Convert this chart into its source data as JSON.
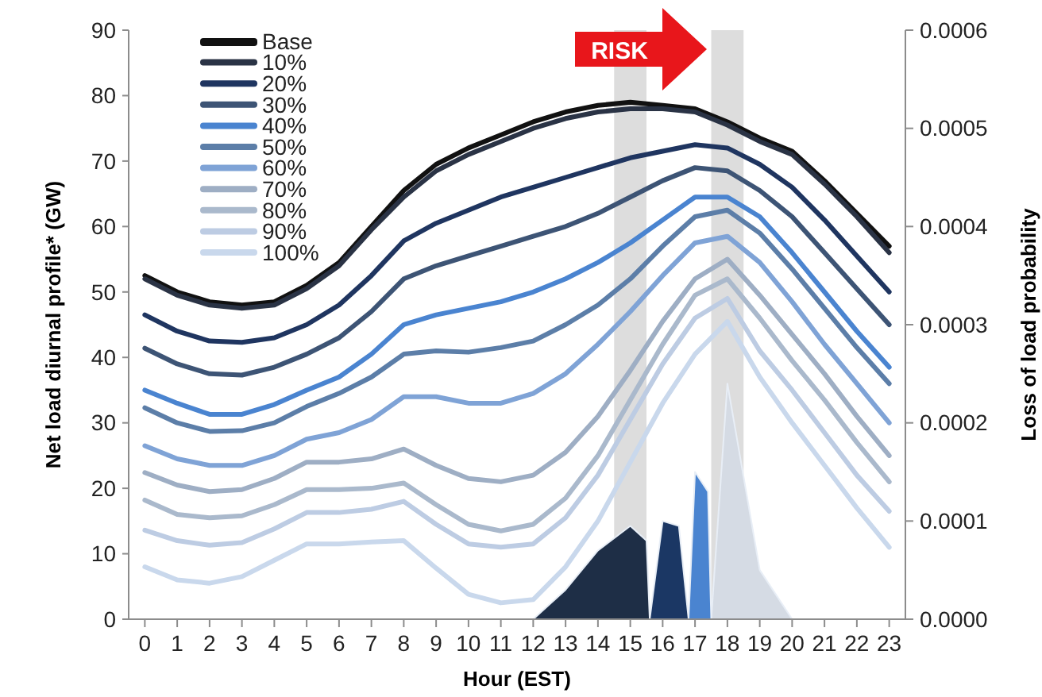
{
  "chart_data": {
    "type": "line",
    "xlabel": "Hour (EST)",
    "ylabel": "Net load diurnal profile* (GW)",
    "y2label": "Loss of load probability",
    "x": [
      0,
      1,
      2,
      3,
      4,
      5,
      6,
      7,
      8,
      9,
      10,
      11,
      12,
      13,
      14,
      15,
      16,
      17,
      18,
      19,
      20,
      21,
      22,
      23
    ],
    "xlim": [
      -0.5,
      23.5
    ],
    "xticks": [
      0,
      1,
      2,
      3,
      4,
      5,
      6,
      7,
      8,
      9,
      10,
      11,
      12,
      13,
      14,
      15,
      16,
      17,
      18,
      19,
      20,
      21,
      22,
      23
    ],
    "ylim": [
      0,
      90
    ],
    "yticks": [
      0,
      10,
      20,
      30,
      40,
      50,
      60,
      70,
      80,
      90
    ],
    "y2lim": [
      0,
      0.0006
    ],
    "y2ticks": [
      {
        "value": 0,
        "label": "0.0000"
      },
      {
        "value": 0.0001,
        "label": "0.0001"
      },
      {
        "value": 0.0002,
        "label": "0.0002"
      },
      {
        "value": 0.0003,
        "label": "0.0003"
      },
      {
        "value": 0.0004,
        "label": "0.0004"
      },
      {
        "value": 0.0005,
        "label": "0.0005"
      },
      {
        "value": 0.0006,
        "label": "0.0006"
      }
    ],
    "grid": false,
    "legend": "top left",
    "line_style": "solid",
    "marker": "none",
    "bands": [
      {
        "axis": "x",
        "from": 14.5,
        "to": 15.5,
        "color": "#d4d4d4"
      },
      {
        "axis": "x",
        "from": 17.5,
        "to": 18.5,
        "color": "#d4d4d4"
      }
    ],
    "annotations": [
      "RISK"
    ],
    "series": [
      {
        "type": "area",
        "axis": "y2",
        "color": "#d5dbe4",
        "x": [
          17.5,
          18,
          19,
          20
        ],
        "values": [
          0,
          0.00024,
          5e-05,
          0
        ]
      },
      {
        "type": "area",
        "axis": "y2",
        "color": "#4a84d0",
        "x": [
          16.8,
          17,
          17.4,
          17.5
        ],
        "values": [
          0,
          0.00015,
          0.00013,
          0
        ]
      },
      {
        "type": "area",
        "axis": "y2",
        "color": "#1b3764",
        "x": [
          15.6,
          16,
          16.5,
          16.8
        ],
        "values": [
          0,
          0.0001,
          9.5e-05,
          0
        ]
      },
      {
        "type": "area",
        "axis": "y2",
        "color": "#1e2e46",
        "x": [
          12,
          13,
          14,
          15,
          15.5,
          15.6
        ],
        "values": [
          0,
          3e-05,
          7e-05,
          9.5e-05,
          8e-05,
          0
        ]
      },
      {
        "name": "Base",
        "color": "#111111",
        "values": [
          52.5,
          50,
          48.5,
          48,
          48.5,
          51,
          54.5,
          60,
          65.5,
          69.5,
          72,
          74,
          76,
          77.5,
          78.5,
          79,
          78.5,
          78,
          76,
          73.5,
          71.5,
          67,
          62,
          57
        ]
      },
      {
        "name": "10%",
        "color": "#2a3345",
        "values": [
          52,
          49.5,
          48,
          47.5,
          48,
          50.5,
          54,
          59.5,
          64.5,
          68.5,
          71,
          73,
          75,
          76.5,
          77.5,
          78,
          78,
          77.5,
          75.5,
          73,
          71,
          66.5,
          61.5,
          56
        ]
      },
      {
        "name": "20%",
        "color": "#1f3560",
        "values": [
          46.5,
          44,
          42.5,
          42.3,
          43,
          45,
          48,
          52.5,
          57.8,
          60.5,
          62.5,
          64.5,
          66,
          67.5,
          69,
          70.5,
          71.5,
          72.5,
          72,
          69.5,
          66,
          61,
          55.5,
          50
        ]
      },
      {
        "name": "30%",
        "color": "#3d5475",
        "values": [
          41.4,
          39,
          37.5,
          37.3,
          38.5,
          40.5,
          43,
          47,
          52,
          54,
          55.5,
          57,
          58.5,
          60,
          62,
          64.5,
          67,
          69,
          68.5,
          65.5,
          61.5,
          56,
          50.5,
          45
        ]
      },
      {
        "name": "40%",
        "color": "#4a84d0",
        "values": [
          35,
          33,
          31.3,
          31.3,
          32.8,
          35,
          37,
          40.5,
          45,
          46.5,
          47.5,
          48.5,
          50,
          52,
          54.5,
          57.5,
          61,
          64.5,
          64.5,
          61.5,
          56,
          50,
          44,
          38.5
        ]
      },
      {
        "name": "50%",
        "color": "#5c7ea8",
        "values": [
          32.3,
          30,
          28.7,
          28.8,
          30,
          32.5,
          34.5,
          37,
          40.5,
          41,
          40.8,
          41.5,
          42.5,
          45,
          48,
          52,
          57,
          61.5,
          62.5,
          59,
          53.5,
          47.5,
          41.5,
          36
        ]
      },
      {
        "name": "60%",
        "color": "#7fa3d6",
        "values": [
          26.5,
          24.5,
          23.5,
          23.5,
          25,
          27.5,
          28.5,
          30.5,
          34,
          34,
          33,
          33,
          34.5,
          37.5,
          42,
          47,
          52.5,
          57.5,
          58.5,
          54.5,
          48.5,
          42,
          36,
          30
        ]
      },
      {
        "name": "70%",
        "color": "#9eaec4",
        "values": [
          22.4,
          20.5,
          19.5,
          19.8,
          21.5,
          24,
          24,
          24.5,
          26,
          23.5,
          21.5,
          21,
          22,
          25.5,
          31,
          38,
          45.5,
          52,
          55,
          49.5,
          43.5,
          37.5,
          31,
          25
        ]
      },
      {
        "name": "80%",
        "color": "#aab9cc",
        "values": [
          18.2,
          16,
          15.5,
          15.8,
          17.5,
          19.8,
          19.8,
          20,
          20.8,
          17.5,
          14.5,
          13.5,
          14.5,
          18.5,
          25,
          33.5,
          42,
          49.5,
          52,
          46,
          39.5,
          33.5,
          27,
          21
        ]
      },
      {
        "name": "90%",
        "color": "#bdcce3",
        "values": [
          13.6,
          12,
          11.3,
          11.7,
          13.8,
          16.3,
          16.3,
          16.8,
          18,
          14.5,
          11.5,
          11,
          11.5,
          15.5,
          22,
          30.5,
          39,
          46,
          49,
          41,
          35,
          28.5,
          22,
          16.5
        ]
      },
      {
        "name": "100%",
        "color": "#c9d8ec",
        "values": [
          8,
          6,
          5.5,
          6.5,
          9,
          11.5,
          11.5,
          11.8,
          12,
          7.8,
          3.8,
          2.5,
          3,
          8,
          15,
          24,
          33,
          40.5,
          45.5,
          37,
          30,
          23.5,
          17,
          11
        ]
      }
    ]
  }
}
